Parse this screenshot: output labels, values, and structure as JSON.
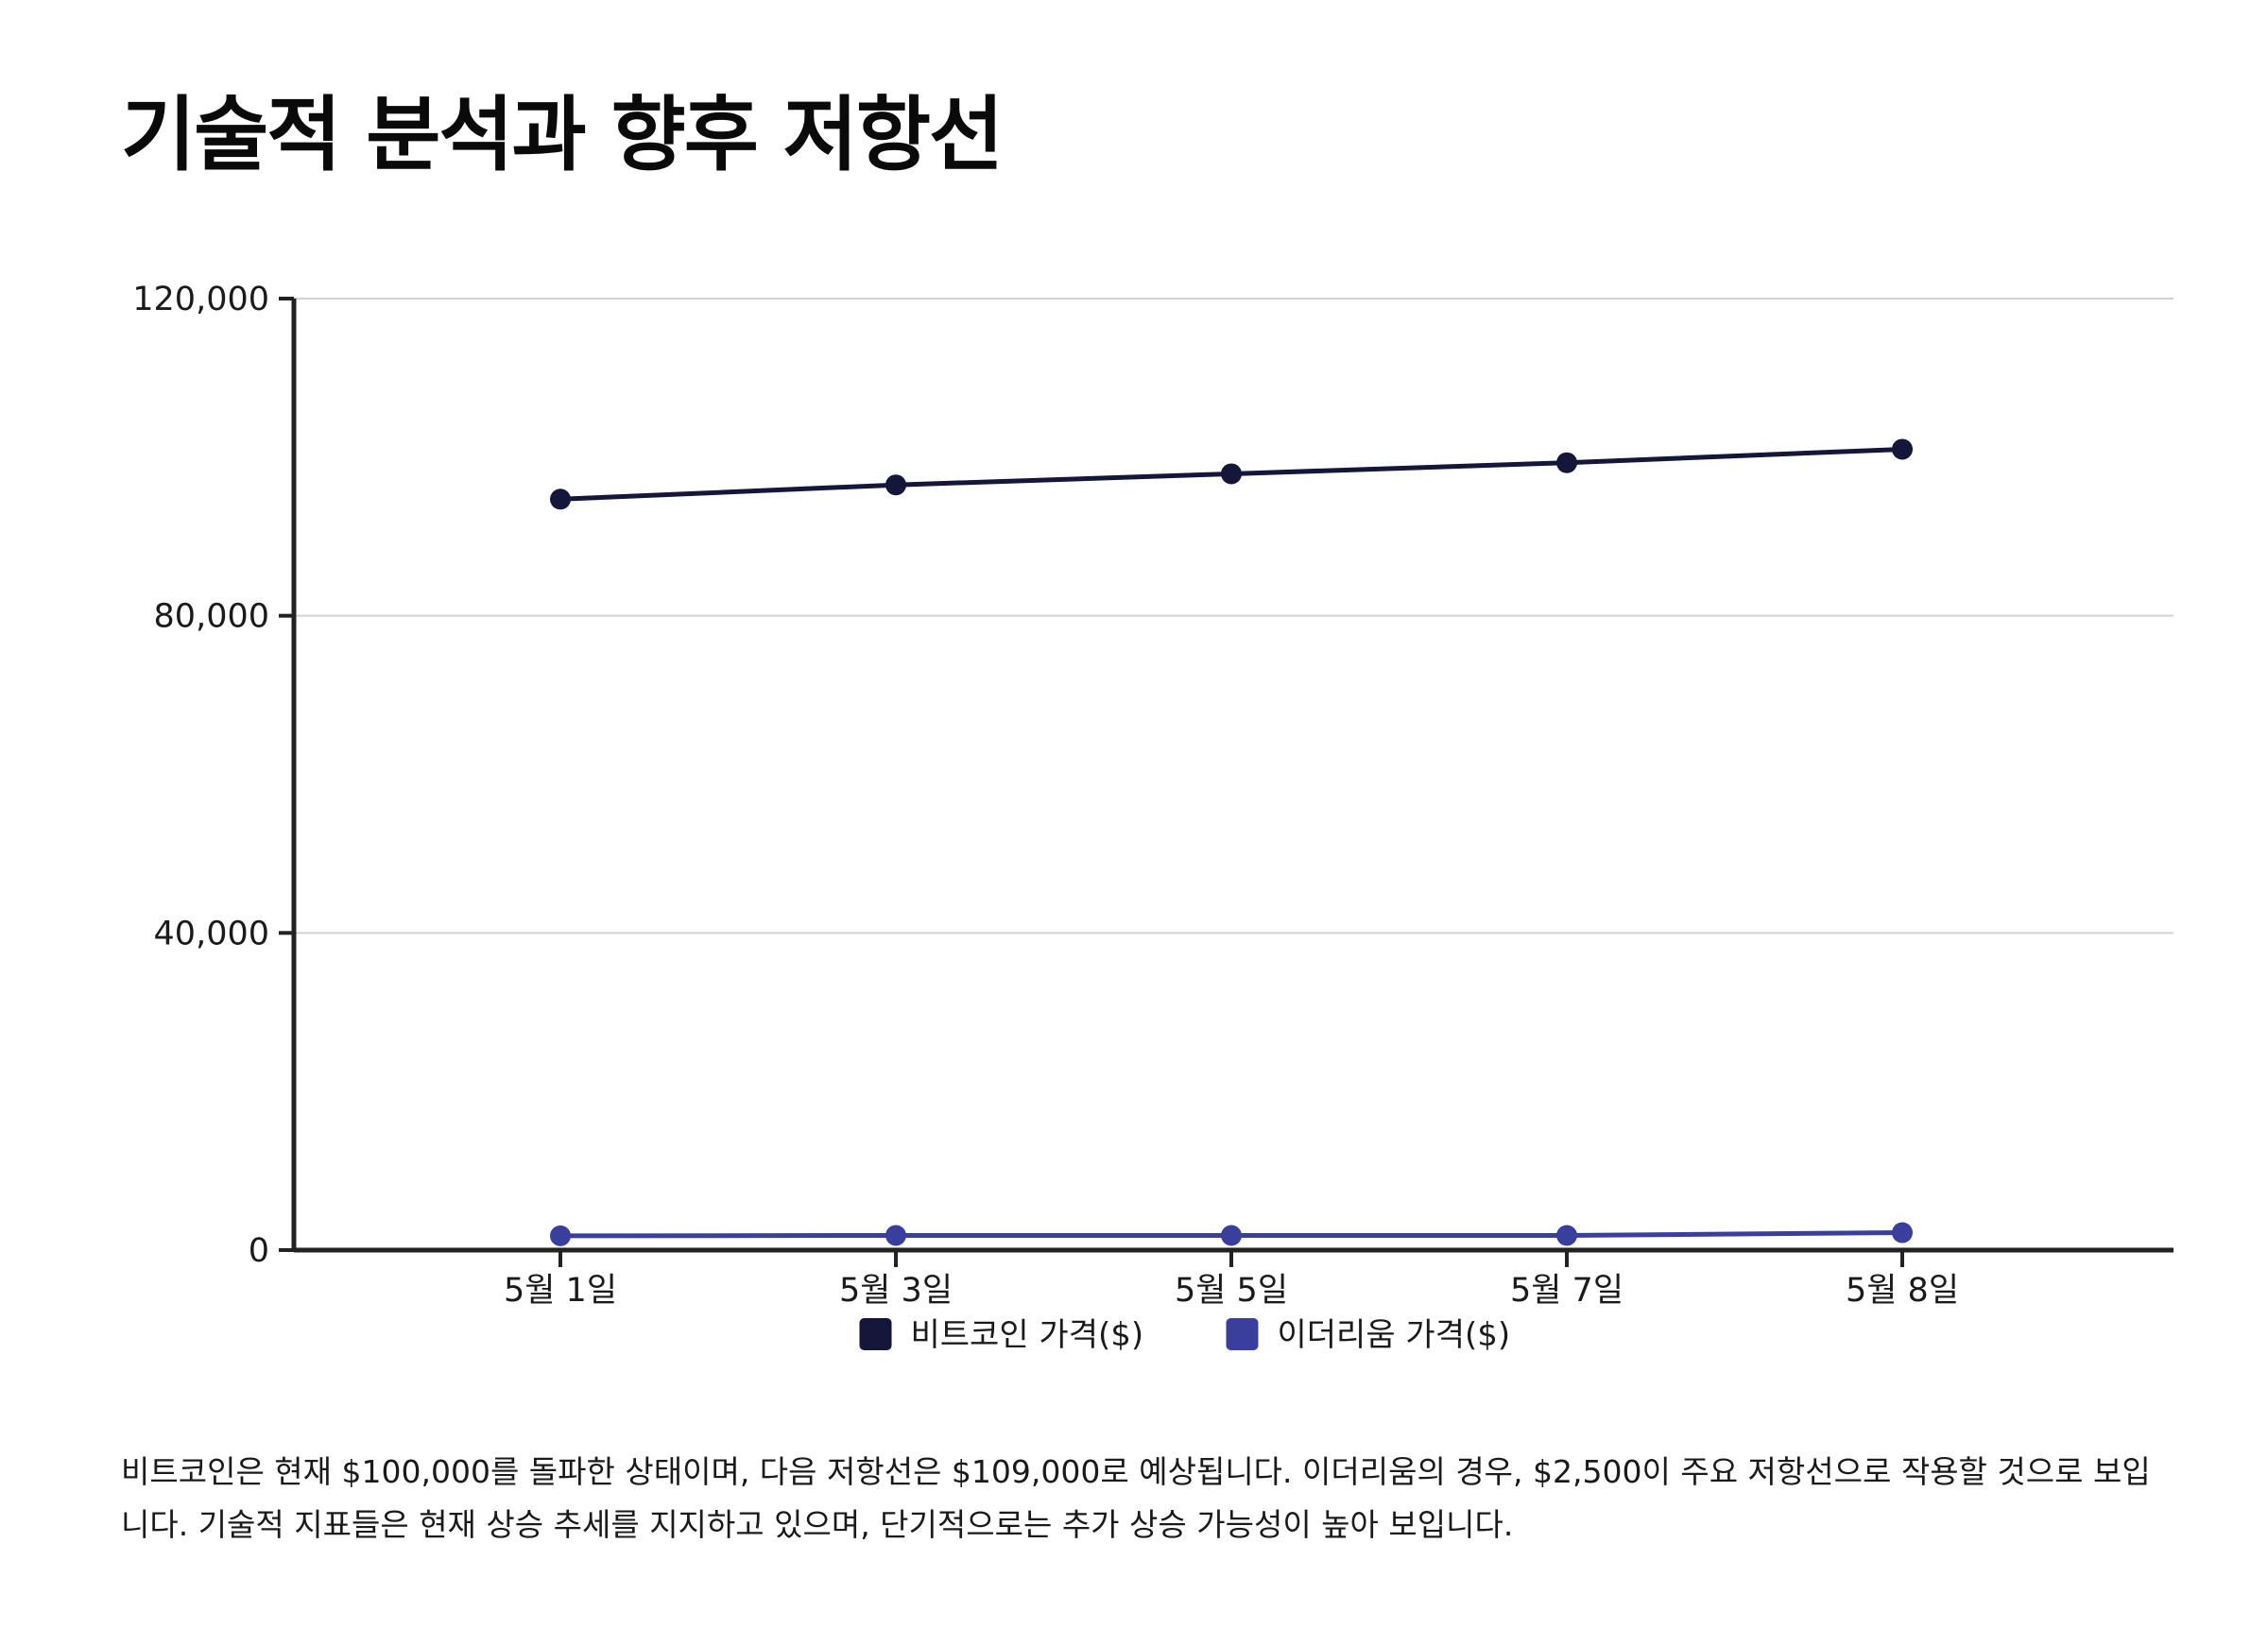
{
  "page": {
    "title": "기술적 분석과 향후 저항선",
    "description": "비트코인은 현재 $100,000를 돌파한 상태이며, 다음 저항선은 $109,000로 예상됩니다. 이더리움의 경우, $2,500이 주요 저항선으로 작용할 것으로 보입니다. 기술적 지표들은 현재 상승 추세를 지지하고 있으며, 단기적으로는 추가 상승 가능성이 높아 보입니다."
  },
  "chart_data": {
    "type": "line",
    "title": "",
    "xlabel": "",
    "ylabel": "",
    "categories": [
      "5월 1일",
      "5월 3일",
      "5월 5일",
      "5월 7일",
      "5월 8일"
    ],
    "ylim": [
      0,
      120000
    ],
    "yticks": [
      0,
      40000,
      80000,
      120000
    ],
    "ytick_labels": [
      "0",
      "40,000",
      "80,000",
      "120,000"
    ],
    "grid": true,
    "legend_position": "bottom",
    "series": [
      {
        "name": "비트코인 가격($)",
        "color": "#14163a",
        "values": [
          94700,
          96500,
          97900,
          99300,
          101000
        ]
      },
      {
        "name": "이더리움 가격($)",
        "color": "#3a3f9e",
        "values": [
          1800,
          1850,
          1850,
          1850,
          2200
        ]
      }
    ]
  }
}
